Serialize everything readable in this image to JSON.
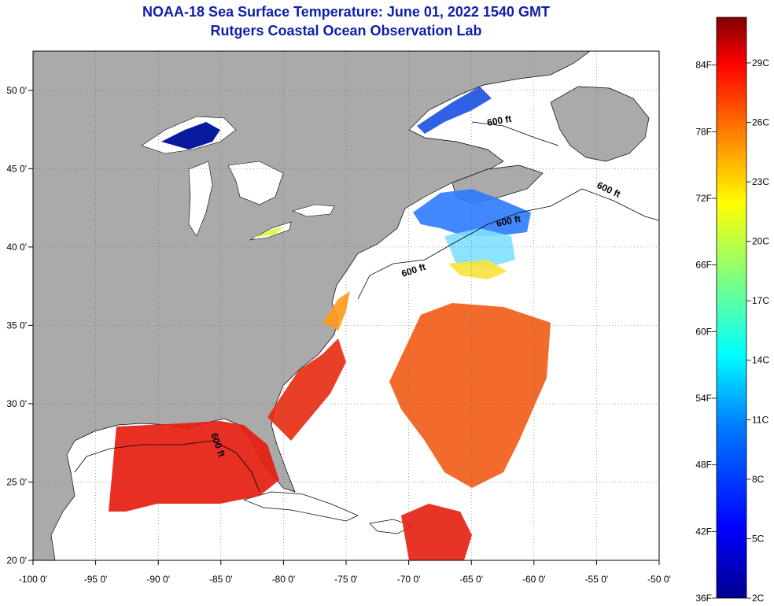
{
  "title": "NOAA-18 Sea Surface Temperature:  June 01, 2022 1540 GMT",
  "subtitle": "Rutgers Coastal Ocean Observation Lab",
  "map": {
    "lon_range": [
      -100,
      -50
    ],
    "lat_range": [
      20,
      52.5
    ],
    "x_ticks": [
      "-100 0'",
      "-95 0'",
      "-90 0'",
      "-85 0'",
      "-80 0'",
      "-75 0'",
      "-70 0'",
      "-65 0'",
      "-60 0'",
      "-55 0'",
      "-50 0'"
    ],
    "y_ticks": [
      "50 0'",
      "45 0'",
      "40 0'",
      "35 0'",
      "30 0'",
      "25 0'",
      "20 0'"
    ],
    "grid": "dotted",
    "land_color": "#aaaaaa",
    "contour_label": "600 ft"
  },
  "colorbar": {
    "f_labels": [
      "84F",
      "78F",
      "72F",
      "66F",
      "60F",
      "54F",
      "48F",
      "42F",
      "36F"
    ],
    "c_labels": [
      "29C",
      "26C",
      "23C",
      "20C",
      "17C",
      "14C",
      "11C",
      "8C",
      "5C",
      "2C"
    ],
    "colors": [
      "#7f0000",
      "#ff0000",
      "#ff7f00",
      "#ffff00",
      "#7fff7f",
      "#00ffff",
      "#007fff",
      "#0000ff",
      "#00008f"
    ]
  }
}
